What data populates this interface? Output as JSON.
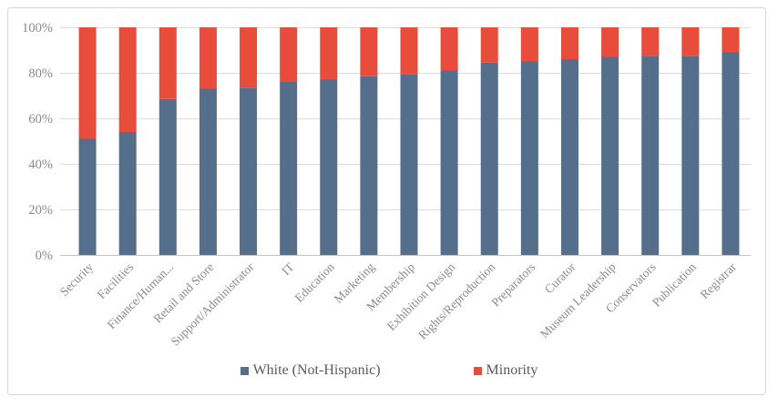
{
  "frame": {
    "background": "#ffffff",
    "border_color": "#d7d7d7"
  },
  "chart_data": {
    "type": "bar",
    "stacked": true,
    "title": "",
    "xlabel": "",
    "ylabel": "",
    "ylim": [
      0,
      100
    ],
    "grid": "horizontal",
    "legend_position": "bottom",
    "y_ticks": [
      "0%",
      "20%",
      "40%",
      "60%",
      "80%",
      "100%"
    ],
    "categories": [
      "Security",
      "Facilities",
      "Finance/Human...",
      "Retail and Store",
      "Support/Administrator",
      "IT",
      "Education",
      "Marketing",
      "Membership",
      "Exhibition Design",
      "Rights/Reproduction",
      "Preparators",
      "Curator",
      "Museum Leadership",
      "Conservators",
      "Publication",
      "Registrar"
    ],
    "series": [
      {
        "name": "White (Not-Hispanic)",
        "color": "#546e8c",
        "values": [
          51,
          54,
          68.5,
          73,
          73.5,
          76,
          77,
          78.5,
          79.5,
          81,
          84.5,
          85,
          86,
          87,
          87.5,
          87.5,
          89
        ]
      },
      {
        "name": "Minority",
        "color": "#e84c3b",
        "values": [
          49,
          46,
          31.5,
          27,
          26.5,
          24,
          23,
          21.5,
          20.5,
          19,
          15.5,
          15,
          14,
          13,
          12.5,
          12.5,
          11
        ]
      }
    ]
  },
  "styles": {
    "grid_color": "#dcdcdc",
    "axis_line_color": "#c4c4c4",
    "tick_label_color": "#8a8a8a",
    "legend_text_color": "#595959"
  }
}
